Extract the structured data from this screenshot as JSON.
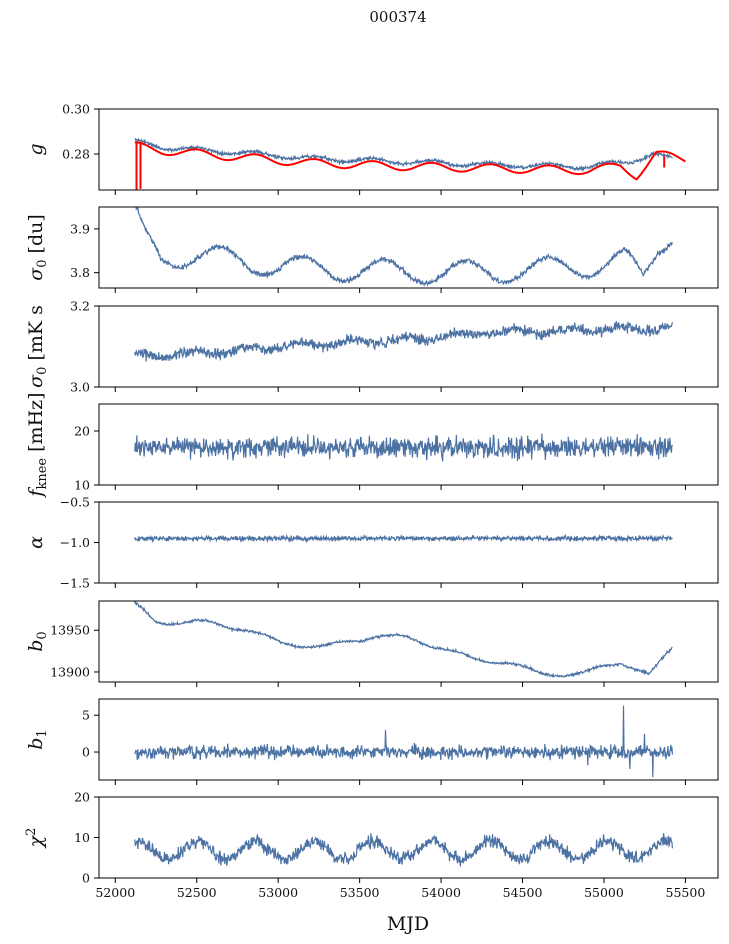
{
  "figure": {
    "title": "000374",
    "xlabel": "MJD"
  },
  "colors": {
    "series": "#4c72a4",
    "model": "#ff0000",
    "axis": "#000000"
  },
  "chart_data": {
    "type": "line",
    "x_range": [
      52120,
      55420
    ],
    "xlim": [
      51900,
      55700
    ],
    "xticks": [
      52000,
      52500,
      53000,
      53500,
      54000,
      54500,
      55000,
      55500
    ],
    "xtick_labels": [
      "52000",
      "52500",
      "53000",
      "53500",
      "54000",
      "54500",
      "55000",
      "55500"
    ],
    "panels": [
      {
        "id": "g",
        "ylabel_main": "g",
        "ylabel_sub": "",
        "ylim": [
          0.264,
          0.3
        ],
        "yticks": [
          0.28,
          0.3
        ],
        "ytick_labels": [
          "0.28",
          "0.30"
        ],
        "trend": [
          [
            52120,
            0.2855
          ],
          [
            52300,
            0.283
          ],
          [
            52700,
            0.281
          ],
          [
            53200,
            0.278
          ],
          [
            53800,
            0.2765
          ],
          [
            54400,
            0.275
          ],
          [
            54900,
            0.2745
          ],
          [
            55150,
            0.2765
          ],
          [
            55300,
            0.28
          ],
          [
            55420,
            0.2775
          ]
        ],
        "osc_period": 360,
        "osc_amp": 0.001,
        "noise": 0.00045,
        "seed": 11,
        "model": {
          "trend": [
            [
              52120,
              0.2835
            ],
            [
              52300,
              0.2815
            ],
            [
              52700,
              0.279
            ],
            [
              53200,
              0.276
            ],
            [
              53800,
              0.2745
            ],
            [
              54400,
              0.2735
            ],
            [
              54900,
              0.2728
            ],
            [
              55100,
              0.2745
            ],
            [
              55200,
              0.2705
            ],
            [
              55320,
              0.28
            ],
            [
              55500,
              0.2775
            ]
          ],
          "osc_period": 360,
          "osc_amp": 0.0018,
          "x_end": 55500,
          "spikes": [
            [
              52130,
              0.264,
              0.2855
            ],
            [
              52155,
              0.2645,
              0.2855
            ],
            [
              55370,
              0.274,
              0.279
            ]
          ]
        }
      },
      {
        "id": "sigma0",
        "ylabel_main": "σ",
        "ylabel_sub": "0",
        "ylabel_suffix": " [du]",
        "ylim": [
          3.765,
          3.95
        ],
        "yticks": [
          3.8,
          3.9
        ],
        "ytick_labels": [
          "3.8",
          "3.9"
        ],
        "trend": [
          [
            52120,
            3.935
          ],
          [
            52180,
            3.88
          ],
          [
            52280,
            3.835
          ],
          [
            52500,
            3.84
          ],
          [
            53000,
            3.815
          ],
          [
            53500,
            3.805
          ],
          [
            54000,
            3.8
          ],
          [
            54500,
            3.805
          ],
          [
            55000,
            3.82
          ],
          [
            55130,
            3.83
          ],
          [
            55240,
            3.785
          ],
          [
            55330,
            3.86
          ],
          [
            55420,
            3.895
          ]
        ],
        "osc_period": 500,
        "osc_amp": 0.026,
        "noise": 0.0035,
        "seed": 22
      },
      {
        "id": "sigma_wn",
        "ylabel_main": "σ",
        "ylabel_sub": "0",
        "ylabel_suffix": " [mK s",
        "ylim": [
          3.0,
          3.2
        ],
        "yticks": [
          3.0,
          3.2
        ],
        "ytick_labels": [
          "3.0",
          "3.2"
        ],
        "trend": [
          [
            52120,
            3.075
          ],
          [
            52600,
            3.085
          ],
          [
            53000,
            3.1
          ],
          [
            53400,
            3.11
          ],
          [
            53900,
            3.12
          ],
          [
            54300,
            3.135
          ],
          [
            54800,
            3.14
          ],
          [
            55420,
            3.145
          ]
        ],
        "osc_period": 330,
        "osc_amp": 0.006,
        "noise": 0.008,
        "seed": 33
      },
      {
        "id": "fknee",
        "ylabel_main": "f",
        "ylabel_sub": "knee",
        "ylabel_suffix": " [mHz]",
        "ylim": [
          10,
          25
        ],
        "yticks": [
          10,
          20
        ],
        "ytick_labels": [
          "10",
          "20"
        ],
        "trend": [
          [
            52120,
            17
          ],
          [
            55420,
            17
          ]
        ],
        "osc_period": 400,
        "osc_amp": 0.0,
        "noise": 1.2,
        "seed": 44
      },
      {
        "id": "alpha",
        "ylabel_main": "α",
        "ylabel_sub": "",
        "ylim": [
          -1.5,
          -0.5
        ],
        "yticks": [
          -1.5,
          -1.0,
          -0.5
        ],
        "ytick_labels": [
          "−1.5",
          "−1.0",
          "−0.5"
        ],
        "trend": [
          [
            52120,
            -0.95
          ],
          [
            55420,
            -0.95
          ]
        ],
        "osc_period": 400,
        "osc_amp": 0.0,
        "noise": 0.018,
        "seed": 55
      },
      {
        "id": "b0",
        "ylabel_main": "b",
        "ylabel_sub": "0",
        "ylim": [
          13888,
          13985
        ],
        "yticks": [
          13900,
          13950
        ],
        "ytick_labels": [
          "13900",
          "13950"
        ],
        "trend": [
          [
            52120,
            13981
          ],
          [
            52250,
            13960
          ],
          [
            52500,
            13960
          ],
          [
            52800,
            13952
          ],
          [
            53000,
            13935
          ],
          [
            53300,
            13930
          ],
          [
            53600,
            13944
          ],
          [
            53800,
            13940
          ],
          [
            54000,
            13930
          ],
          [
            54200,
            13914
          ],
          [
            54400,
            13913
          ],
          [
            54600,
            13897
          ],
          [
            54900,
            13899
          ],
          [
            55100,
            13912
          ],
          [
            55200,
            13905
          ],
          [
            55280,
            13896
          ],
          [
            55420,
            13928
          ]
        ],
        "osc_period": 400,
        "osc_amp": 3.0,
        "noise": 0.9,
        "seed": 66
      },
      {
        "id": "b1",
        "ylabel_main": "b",
        "ylabel_sub": "1",
        "ylim": [
          -3.8,
          7.2
        ],
        "yticks": [
          0,
          5
        ],
        "ytick_labels": [
          "0",
          "5"
        ],
        "trend": [
          [
            52120,
            0
          ],
          [
            55420,
            0
          ]
        ],
        "osc_period": 400,
        "osc_amp": 0.0,
        "noise": 0.55,
        "seed": 77,
        "spikes": [
          [
            53660,
            3.0
          ],
          [
            54900,
            -1.8
          ],
          [
            55120,
            6.3
          ],
          [
            55160,
            -2.3
          ],
          [
            55250,
            2.5
          ],
          [
            55300,
            -3.4
          ]
        ]
      },
      {
        "id": "chi2",
        "ylabel_main": "χ",
        "ylabel_sup": "2",
        "ylim": [
          0,
          20
        ],
        "yticks": [
          0,
          10,
          20
        ],
        "ytick_labels": [
          "0",
          "10",
          "20"
        ],
        "trend": [
          [
            52120,
            6.8
          ],
          [
            55420,
            7.0
          ]
        ],
        "osc_period": 360,
        "osc_amp": 2.2,
        "noise": 1.0,
        "seed": 88
      }
    ]
  }
}
